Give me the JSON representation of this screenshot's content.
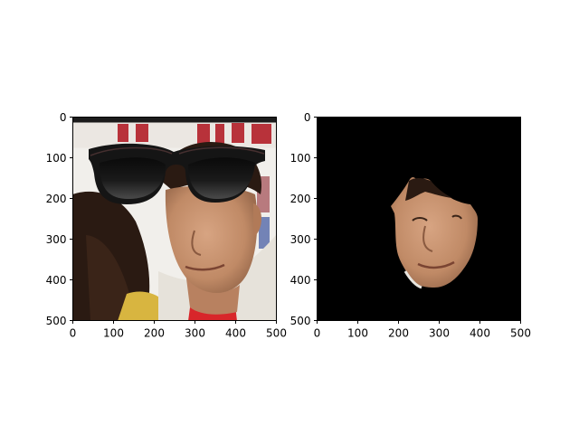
{
  "chart_data": [
    {
      "type": "image",
      "panel": "left",
      "content": "face photo with sunglasses overlay",
      "xlim": [
        0,
        500
      ],
      "ylim": [
        500,
        0
      ],
      "xticks": [
        0,
        100,
        200,
        300,
        400,
        500
      ],
      "yticks": [
        0,
        100,
        200,
        300,
        400,
        500
      ],
      "xtick_labels": [
        "0",
        "100",
        "200",
        "300",
        "400",
        "500"
      ],
      "ytick_labels": [
        "0",
        "100",
        "200",
        "300",
        "400",
        "500"
      ],
      "title": "",
      "xlabel": "",
      "ylabel": ""
    },
    {
      "type": "image",
      "panel": "right",
      "content": "segmented face mask on black background",
      "xlim": [
        0,
        500
      ],
      "ylim": [
        500,
        0
      ],
      "xticks": [
        0,
        100,
        200,
        300,
        400,
        500
      ],
      "yticks": [
        0,
        100,
        200,
        300,
        400,
        500
      ],
      "xtick_labels": [
        "0",
        "100",
        "200",
        "300",
        "400",
        "500"
      ],
      "ytick_labels": [
        "0",
        "100",
        "200",
        "300",
        "400",
        "500"
      ],
      "title": "",
      "xlabel": "",
      "ylabel": ""
    }
  ],
  "colors": {
    "background": "#ffffff",
    "mask_background": "#000000",
    "skin": "#c99672",
    "hair": "#2a1a12",
    "sunglasses": "#151515",
    "shirt_red": "#d8262a",
    "jacket": "#e6e2da",
    "backdrop": "#f1efeb",
    "banner_red": "#b8323a"
  }
}
